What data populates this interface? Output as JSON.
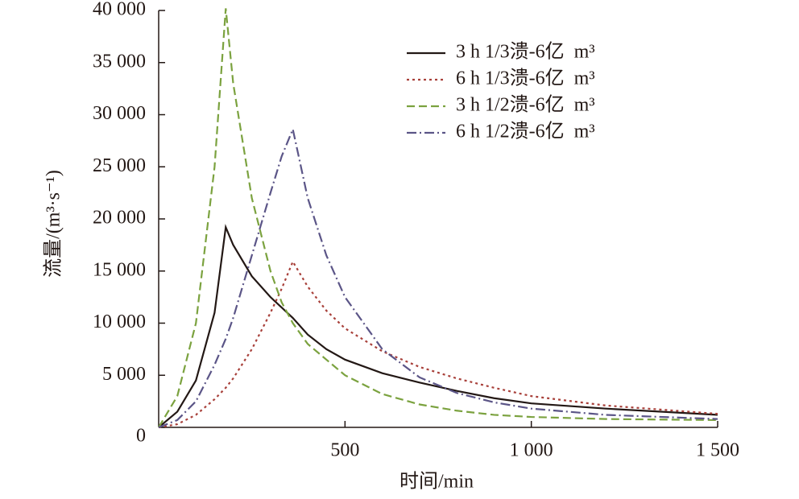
{
  "chart_data": {
    "type": "line",
    "x_label": "时间/min",
    "y_label": "流量/(m³·s⁻¹)",
    "x": [
      0,
      50,
      100,
      150,
      180,
      200,
      250,
      300,
      330,
      360,
      400,
      450,
      500,
      600,
      700,
      800,
      900,
      1000,
      1200,
      1500
    ],
    "series": [
      {
        "name": "3 h 1/3溃-6亿  m³",
        "color": "#231815",
        "dash": "solid",
        "values": [
          0,
          1500,
          4500,
          11000,
          19200,
          17500,
          14500,
          12500,
          11500,
          10500,
          8900,
          7500,
          6500,
          5200,
          4300,
          3500,
          2800,
          2300,
          1800,
          1200
        ]
      },
      {
        "name": "6 h 1/3溃-6亿  m³",
        "color": "#a8403a",
        "dash": "dotted",
        "values": [
          0,
          300,
          1200,
          2700,
          3800,
          4700,
          7500,
          11000,
          13300,
          15900,
          13500,
          11200,
          9500,
          7300,
          5800,
          4700,
          3800,
          3000,
          2100,
          1300
        ]
      },
      {
        "name": "3 h 1/2溃-6亿  m³",
        "color": "#7ba23f",
        "dash": "dashed",
        "values": [
          0,
          3000,
          10000,
          25000,
          40200,
          33000,
          22000,
          15000,
          12000,
          10000,
          8000,
          6500,
          5000,
          3200,
          2200,
          1600,
          1200,
          1000,
          800,
          700
        ]
      },
      {
        "name": "6 h 1/2溃-6亿  m³",
        "color": "#5b5587",
        "dash": "dashdot",
        "values": [
          0,
          700,
          2500,
          6000,
          8500,
          10500,
          16500,
          22500,
          26000,
          28600,
          22000,
          16500,
          12500,
          7500,
          4800,
          3300,
          2400,
          1800,
          1200,
          800
        ]
      }
    ],
    "xlim": [
      0,
      1500
    ],
    "xticks": [
      500,
      {
        "value": 1000,
        "label": "1 000"
      },
      {
        "value": 1500,
        "label": "1 500"
      }
    ],
    "ylim": [
      0,
      40000
    ],
    "yticks": [
      0,
      {
        "value": 5000,
        "label": "5 000"
      },
      {
        "value": 10000,
        "label": "10 000"
      },
      {
        "value": 15000,
        "label": "15 000"
      },
      {
        "value": 20000,
        "label": "20 000"
      },
      {
        "value": 25000,
        "label": "25 000"
      },
      {
        "value": 30000,
        "label": "30 000"
      },
      {
        "value": 35000,
        "label": "35 000"
      },
      {
        "value": 40000,
        "label": "40 000"
      }
    ],
    "legend": "upper right"
  }
}
